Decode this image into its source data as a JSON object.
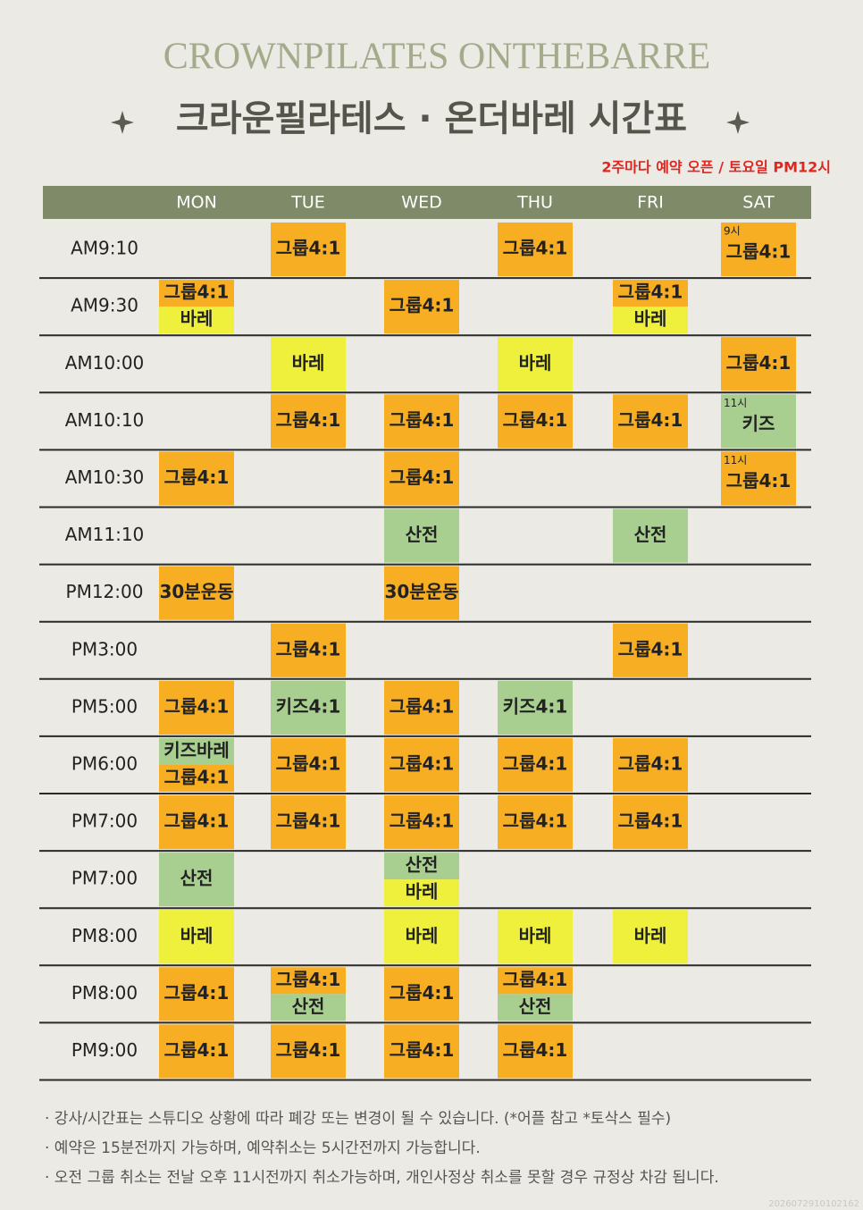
{
  "header": {
    "brand": "CROWNPILATES ONTHEBARRE",
    "title": "크라운필라테스 · 온더바레 시간표",
    "notice": "2주마다 예약 오픈 / 토요일 PM12시"
  },
  "table": {
    "days": [
      "MON",
      "TUE",
      "WED",
      "THU",
      "FRI",
      "SAT"
    ],
    "rows": [
      {
        "time": "AM9:10",
        "cells": [
          null,
          [
            {
              "label": "그룹4:1",
              "color": "#f7ae22"
            }
          ],
          null,
          [
            {
              "label": "그룹4:1",
              "color": "#f7ae22"
            }
          ],
          null,
          [
            {
              "label": "그룹4:1",
              "color": "#f7ae22",
              "note": "9시"
            }
          ]
        ]
      },
      {
        "time": "AM9:30",
        "cells": [
          [
            {
              "label": "그룹4:1",
              "color": "#f7ae22"
            },
            {
              "label": "바레",
              "color": "#eef03c"
            }
          ],
          null,
          [
            {
              "label": "그룹4:1",
              "color": "#f7ae22"
            }
          ],
          null,
          [
            {
              "label": "그룹4:1",
              "color": "#f7ae22"
            },
            {
              "label": "바레",
              "color": "#eef03c"
            }
          ],
          null
        ]
      },
      {
        "time": "AM10:00",
        "cells": [
          null,
          [
            {
              "label": "바레",
              "color": "#eef03c"
            }
          ],
          null,
          [
            {
              "label": "바레",
              "color": "#eef03c"
            }
          ],
          null,
          [
            {
              "label": "그룹4:1",
              "color": "#f7ae22"
            }
          ]
        ]
      },
      {
        "time": "AM10:10",
        "cells": [
          null,
          [
            {
              "label": "그룹4:1",
              "color": "#f7ae22"
            }
          ],
          [
            {
              "label": "그룹4:1",
              "color": "#f7ae22"
            }
          ],
          [
            {
              "label": "그룹4:1",
              "color": "#f7ae22"
            }
          ],
          [
            {
              "label": "그룹4:1",
              "color": "#f7ae22"
            }
          ],
          [
            {
              "label": "키즈",
              "color": "#a8cf90",
              "note": "11시"
            }
          ]
        ]
      },
      {
        "time": "AM10:30",
        "cells": [
          [
            {
              "label": "그룹4:1",
              "color": "#f7ae22"
            }
          ],
          null,
          [
            {
              "label": "그룹4:1",
              "color": "#f7ae22"
            }
          ],
          null,
          null,
          [
            {
              "label": "그룹4:1",
              "color": "#f7ae22",
              "note": "11시"
            }
          ]
        ]
      },
      {
        "time": "AM11:10",
        "cells": [
          null,
          null,
          [
            {
              "label": "산전",
              "color": "#a8cf90"
            }
          ],
          null,
          [
            {
              "label": "산전",
              "color": "#a8cf90"
            }
          ],
          null
        ]
      },
      {
        "time": "PM12:00",
        "cells": [
          [
            {
              "label": "30분운동",
              "color": "#f7ae22"
            }
          ],
          null,
          [
            {
              "label": "30분운동",
              "color": "#f7ae22"
            }
          ],
          null,
          null,
          null
        ]
      },
      {
        "time": "PM3:00",
        "cells": [
          null,
          [
            {
              "label": "그룹4:1",
              "color": "#f7ae22"
            }
          ],
          null,
          null,
          [
            {
              "label": "그룹4:1",
              "color": "#f7ae22"
            }
          ],
          null
        ]
      },
      {
        "time": "PM5:00",
        "cells": [
          [
            {
              "label": "그룹4:1",
              "color": "#f7ae22"
            }
          ],
          [
            {
              "label": "키즈4:1",
              "color": "#a8cf90"
            }
          ],
          [
            {
              "label": "그룹4:1",
              "color": "#f7ae22"
            }
          ],
          [
            {
              "label": "키즈4:1",
              "color": "#a8cf90"
            }
          ],
          null,
          null
        ]
      },
      {
        "time": "PM6:00",
        "cells": [
          [
            {
              "label": "키즈바레",
              "color": "#a8cf90"
            },
            {
              "label": "그룹4:1",
              "color": "#f7ae22"
            }
          ],
          [
            {
              "label": "그룹4:1",
              "color": "#f7ae22"
            }
          ],
          [
            {
              "label": "그룹4:1",
              "color": "#f7ae22"
            }
          ],
          [
            {
              "label": "그룹4:1",
              "color": "#f7ae22"
            }
          ],
          [
            {
              "label": "그룹4:1",
              "color": "#f7ae22"
            }
          ],
          null
        ]
      },
      {
        "time": "PM7:00",
        "cells": [
          [
            {
              "label": "그룹4:1",
              "color": "#f7ae22"
            }
          ],
          [
            {
              "label": "그룹4:1",
              "color": "#f7ae22"
            }
          ],
          [
            {
              "label": "그룹4:1",
              "color": "#f7ae22"
            }
          ],
          [
            {
              "label": "그룹4:1",
              "color": "#f7ae22"
            }
          ],
          [
            {
              "label": "그룹4:1",
              "color": "#f7ae22"
            }
          ],
          null
        ]
      },
      {
        "time": "PM7:00",
        "cells": [
          [
            {
              "label": "산전",
              "color": "#a8cf90"
            }
          ],
          null,
          [
            {
              "label": "산전",
              "color": "#a8cf90"
            },
            {
              "label": "바레",
              "color": "#eef03c"
            }
          ],
          null,
          null,
          null
        ]
      },
      {
        "time": "PM8:00",
        "cells": [
          [
            {
              "label": "바레",
              "color": "#eef03c"
            }
          ],
          null,
          [
            {
              "label": "바레",
              "color": "#eef03c"
            }
          ],
          [
            {
              "label": "바레",
              "color": "#eef03c"
            }
          ],
          [
            {
              "label": "바레",
              "color": "#eef03c"
            }
          ],
          null
        ]
      },
      {
        "time": "PM8:00",
        "cells": [
          [
            {
              "label": "그룹4:1",
              "color": "#f7ae22"
            }
          ],
          [
            {
              "label": "그룹4:1",
              "color": "#f7ae22"
            },
            {
              "label": "산전",
              "color": "#a8cf90"
            }
          ],
          [
            {
              "label": "그룹4:1",
              "color": "#f7ae22"
            }
          ],
          [
            {
              "label": "그룹4:1",
              "color": "#f7ae22"
            },
            {
              "label": "산전",
              "color": "#a8cf90"
            }
          ],
          null,
          null
        ]
      },
      {
        "time": "PM9:00",
        "cells": [
          [
            {
              "label": "그룹4:1",
              "color": "#f7ae22"
            }
          ],
          [
            {
              "label": "그룹4:1",
              "color": "#f7ae22"
            }
          ],
          [
            {
              "label": "그룹4:1",
              "color": "#f7ae22"
            }
          ],
          [
            {
              "label": "그룹4:1",
              "color": "#f7ae22"
            }
          ],
          null,
          null
        ]
      }
    ]
  },
  "footer": {
    "notes": [
      "· 강사/시간표는 스튜디오 상황에 따라 폐강 또는 변경이 될 수 있습니다. (*어플 참고 *토삭스 필수)",
      "· 예약은 15분전까지 가능하며, 예약취소는 5시간전까지 가능합니다.",
      "· 오전 그룹 취소는 전날 오후 11시전까지 취소가능하며, 개인사정상 취소를 못할 경우 규정상 차감 됩니다."
    ],
    "stamp": "2026072910102162"
  }
}
